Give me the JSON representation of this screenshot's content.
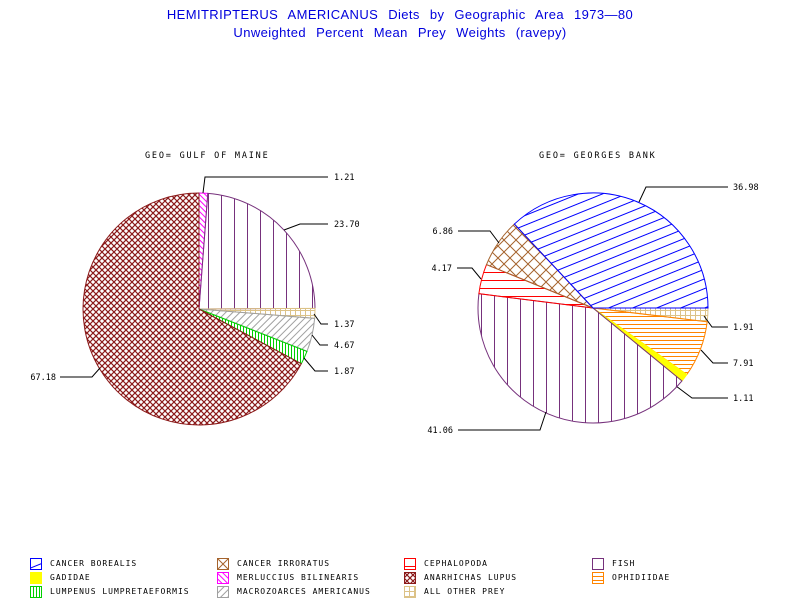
{
  "title": {
    "line1": "HEMITRIPTERUS AMERICANUS Diets by Geographic Area 1973—80",
    "line2": "Unweighted Percent Mean Prey Weights (ravepy)",
    "color": "#0000DD"
  },
  "chart_data": [
    {
      "type": "pie",
      "geo_label": "GEO= GULF OF MAINE",
      "direction": "clockwise",
      "start_angle_clockwise_from_north": 0,
      "slices": [
        {
          "species": "MERLUCCIUS BILINEARIS",
          "value": 1.21,
          "display": "1.21"
        },
        {
          "species": "FISH",
          "value": 23.7,
          "display": "23.70"
        },
        {
          "species": "ALL OTHER PREY",
          "value": 1.37,
          "display": "1.37"
        },
        {
          "species": "MACROZOARCES AMERICANUS",
          "value": 4.67,
          "display": "4.67"
        },
        {
          "species": "LUMPENUS LUMPRETAEFORMIS",
          "value": 1.87,
          "display": "1.87"
        },
        {
          "species": "ANARHICHAS LUPUS",
          "value": 67.18,
          "display": "67.18"
        }
      ]
    },
    {
      "type": "pie",
      "geo_label": "GEO= GEORGES BANK",
      "direction": "clockwise",
      "start_angle_clockwise_from_north": 90,
      "slices": [
        {
          "species": "ALL OTHER PREY",
          "value": 1.91,
          "display": "1.91"
        },
        {
          "species": "OPHIDIIDAE",
          "value": 7.91,
          "display": "7.91"
        },
        {
          "species": "GADIDAE",
          "value": 1.11,
          "display": "1.11"
        },
        {
          "species": "FISH",
          "value": 41.06,
          "display": "41.06"
        },
        {
          "species": "CEPHALOPODA",
          "value": 4.17,
          "display": "4.17"
        },
        {
          "species": "CANCER IRRORATUS",
          "value": 6.86,
          "display": "6.86"
        },
        {
          "species": "CANCER BOREALIS",
          "value": 36.98,
          "display": "36.98"
        }
      ]
    }
  ],
  "species_styles": {
    "CANCER BOREALIS": {
      "color": "#0000FF",
      "pattern": "diag-up-sparse"
    },
    "GADIDAE": {
      "color": "#FFFF00",
      "pattern": "solid"
    },
    "LUMPENUS LUMPRETAEFORMIS": {
      "color": "#00D000",
      "pattern": "vert-dense"
    },
    "CANCER IRRORATUS": {
      "color": "#A5632D",
      "pattern": "cross-sparse"
    },
    "MERLUCCIUS BILINEARIS": {
      "color": "#FF00FF",
      "pattern": "diag-down-dense"
    },
    "MACROZOARCES AMERICANUS": {
      "color": "#A0A0A0",
      "pattern": "diag-up-med"
    },
    "CEPHALOPODA": {
      "color": "#FF0000",
      "pattern": "horiz-sparse"
    },
    "ANARHICHAS LUPUS": {
      "color": "#8B1A1A",
      "pattern": "cross-dense"
    },
    "ALL OTHER PREY": {
      "color": "#DCC287",
      "pattern": "grid"
    },
    "FISH": {
      "color": "#76317C",
      "pattern": "vert-sparse"
    },
    "OPHIDIIDAE": {
      "color": "#FF8400",
      "pattern": "horiz-dense"
    }
  },
  "legend": {
    "columns": [
      {
        "items": [
          {
            "label": "CANCER BOREALIS"
          },
          {
            "label": "GADIDAE"
          },
          {
            "label": "LUMPENUS LUMPRETAEFORMIS"
          }
        ]
      },
      {
        "items": [
          {
            "label": "CANCER IRRORATUS"
          },
          {
            "label": "MERLUCCIUS BILINEARIS"
          },
          {
            "label": "MACROZOARCES AMERICANUS"
          }
        ]
      },
      {
        "items": [
          {
            "label": "CEPHALOPODA"
          },
          {
            "label": "ANARHICHAS LUPUS"
          },
          {
            "label": "ALL OTHER PREY"
          }
        ]
      },
      {
        "items": [
          {
            "label": "FISH"
          },
          {
            "label": "OPHIDIIDAE"
          }
        ]
      }
    ]
  }
}
